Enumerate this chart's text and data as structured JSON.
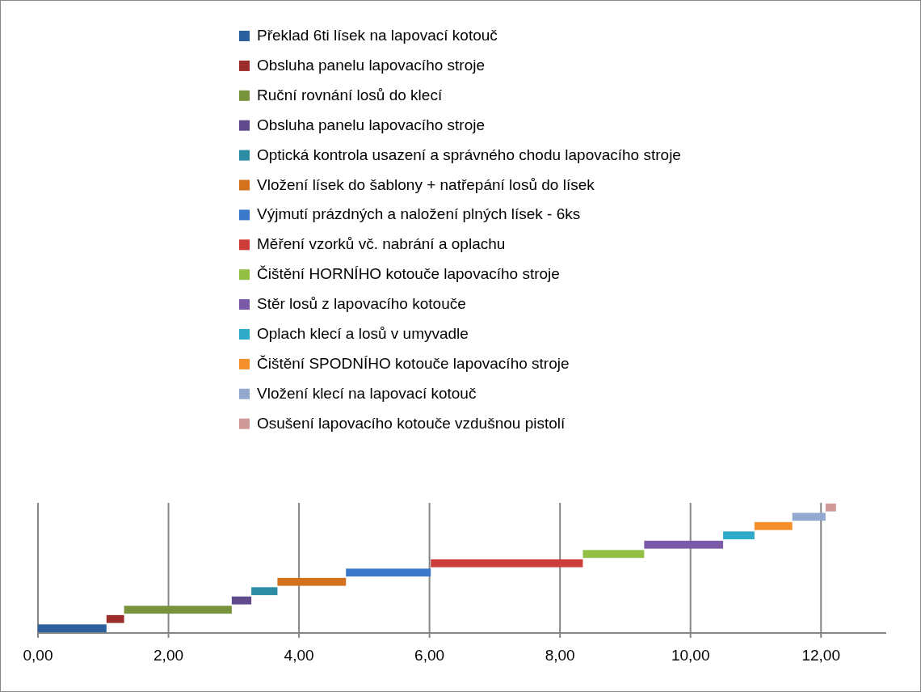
{
  "chart_data": {
    "type": "bar",
    "orientation": "horizontal",
    "stacked": false,
    "categories": [
      null,
      null,
      null,
      null,
      null,
      null,
      null,
      null,
      null,
      null,
      null,
      null,
      null,
      null
    ],
    "series": [
      {
        "name": "Překlad 6ti lísek na lapovací kotouč",
        "color": "#2c5f9e",
        "values": [
          null,
          null,
          null,
          null,
          null,
          null,
          null,
          null,
          null,
          null,
          null,
          null,
          null,
          1.05
        ],
        "base": [
          null,
          null,
          null,
          null,
          null,
          null,
          null,
          null,
          null,
          null,
          null,
          null,
          null,
          0
        ]
      },
      {
        "name": "Obsluha panelu lapovacího stroje",
        "color": "#9b2d2a",
        "values": [
          null,
          null,
          null,
          null,
          null,
          null,
          null,
          null,
          null,
          null,
          null,
          null,
          0.27,
          null
        ],
        "base": [
          null,
          null,
          null,
          null,
          null,
          null,
          null,
          null,
          null,
          null,
          null,
          null,
          1.05,
          null
        ]
      },
      {
        "name": "Ruční rovnání losů do klecí",
        "color": "#77933c",
        "values": [
          null,
          null,
          null,
          null,
          null,
          null,
          null,
          null,
          null,
          null,
          null,
          1.65,
          null,
          null
        ],
        "base": [
          null,
          null,
          null,
          null,
          null,
          null,
          null,
          null,
          null,
          null,
          null,
          1.32,
          null,
          null
        ]
      },
      {
        "name": "Obsluha panelu lapovacího stroje",
        "color": "#5f4a8b",
        "values": [
          null,
          null,
          null,
          null,
          null,
          null,
          null,
          null,
          null,
          null,
          0.3,
          null,
          null,
          null
        ],
        "base": [
          null,
          null,
          null,
          null,
          null,
          null,
          null,
          null,
          null,
          null,
          2.97,
          null,
          null,
          null
        ]
      },
      {
        "name": "Optická kontrola usazení a správného chodu lapovacího stroje",
        "color": "#2c8ca4",
        "values": [
          null,
          null,
          null,
          null,
          null,
          null,
          null,
          null,
          null,
          0.4,
          null,
          null,
          null,
          null
        ],
        "base": [
          null,
          null,
          null,
          null,
          null,
          null,
          null,
          null,
          null,
          3.27,
          null,
          null,
          null,
          null
        ]
      },
      {
        "name": "Vložení lísek do šablony + natřepání losů do lísek",
        "color": "#d4711d",
        "values": [
          null,
          null,
          null,
          null,
          null,
          null,
          null,
          null,
          1.05,
          null,
          null,
          null,
          null,
          null
        ],
        "base": [
          null,
          null,
          null,
          null,
          null,
          null,
          null,
          null,
          3.67,
          null,
          null,
          null,
          null,
          null
        ]
      },
      {
        "name": "Výjmutí prázdných a naložení plných lísek - 6ks",
        "color": "#3a78c9",
        "values": [
          null,
          null,
          null,
          null,
          null,
          null,
          null,
          1.3,
          null,
          null,
          null,
          null,
          null,
          null
        ],
        "base": [
          null,
          null,
          null,
          null,
          null,
          null,
          null,
          4.72,
          null,
          null,
          null,
          null,
          null,
          null
        ]
      },
      {
        "name": "Měření vzorků vč. nabrání a oplachu",
        "color": "#cc3d3a",
        "values": [
          null,
          null,
          null,
          null,
          null,
          null,
          2.33,
          null,
          null,
          null,
          null,
          null,
          null,
          null
        ],
        "base": [
          null,
          null,
          null,
          null,
          null,
          null,
          6.02,
          null,
          null,
          null,
          null,
          null,
          null,
          null
        ]
      },
      {
        "name": "Čištění HORNÍHO kotouče lapovacího stroje",
        "color": "#93bf44",
        "values": [
          null,
          null,
          null,
          null,
          null,
          0.94,
          null,
          null,
          null,
          null,
          null,
          null,
          null,
          null
        ],
        "base": [
          null,
          null,
          null,
          null,
          null,
          8.35,
          null,
          null,
          null,
          null,
          null,
          null,
          null,
          null
        ]
      },
      {
        "name": "Stěr losů z lapovacího kotouče",
        "color": "#7a5aa6",
        "values": [
          null,
          null,
          null,
          null,
          1.21,
          null,
          null,
          null,
          null,
          null,
          null,
          null,
          null,
          null
        ],
        "base": [
          null,
          null,
          null,
          null,
          9.29,
          null,
          null,
          null,
          null,
          null,
          null,
          null,
          null,
          null
        ]
      },
      {
        "name": "Oplach klecí a losů v umyvadle",
        "color": "#2faac9",
        "values": [
          null,
          null,
          null,
          0.48,
          null,
          null,
          null,
          null,
          null,
          null,
          null,
          null,
          null,
          null
        ],
        "base": [
          null,
          null,
          null,
          10.5,
          null,
          null,
          null,
          null,
          null,
          null,
          null,
          null,
          null,
          null
        ]
      },
      {
        "name": "Čištění SPODNÍHO kotouče lapovacího stroje",
        "color": "#f58f29",
        "values": [
          null,
          null,
          0.58,
          null,
          null,
          null,
          null,
          null,
          null,
          null,
          null,
          null,
          null,
          null
        ],
        "base": [
          null,
          null,
          10.98,
          null,
          null,
          null,
          null,
          null,
          null,
          null,
          null,
          null,
          null,
          null
        ]
      },
      {
        "name": "Vložení klecí na lapovací kotouč",
        "color": "#93a9cf",
        "values": [
          null,
          0.51,
          null,
          null,
          null,
          null,
          null,
          null,
          null,
          null,
          null,
          null,
          null,
          null
        ],
        "base": [
          null,
          11.56,
          null,
          null,
          null,
          null,
          null,
          null,
          null,
          null,
          null,
          null,
          null,
          null
        ]
      },
      {
        "name": "Osušení lapovacího kotouče vzdušnou pistolí",
        "color": "#d09a9b",
        "values": [
          0.16,
          null,
          null,
          null,
          null,
          null,
          null,
          null,
          null,
          null,
          null,
          null,
          null,
          null
        ],
        "base": [
          12.07,
          null,
          null,
          null,
          null,
          null,
          null,
          null,
          null,
          null,
          null,
          null,
          null,
          null
        ]
      }
    ],
    "xlim": [
      0,
      13
    ],
    "xticks": [
      {
        "value": 0,
        "label": "0,00"
      },
      {
        "value": 2,
        "label": "2,00"
      },
      {
        "value": 4,
        "label": "4,00"
      },
      {
        "value": 6,
        "label": "6,00"
      },
      {
        "value": 8,
        "label": "8,00"
      },
      {
        "value": 10,
        "label": "10,00"
      },
      {
        "value": 12,
        "label": "12,00"
      }
    ],
    "tick_labels": "x",
    "grid": "x",
    "legend": "top"
  }
}
